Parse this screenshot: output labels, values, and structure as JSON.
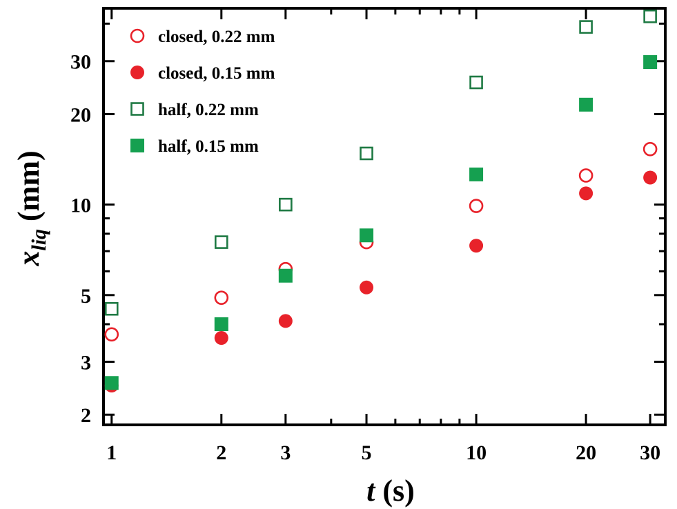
{
  "chart_data": {
    "type": "scatter",
    "title": "",
    "xscale": "log",
    "yscale": "log",
    "xlim": [
      0.95,
      33
    ],
    "ylim": [
      1.85,
      45
    ],
    "x_ticks": [
      1,
      2,
      3,
      5,
      10,
      20,
      30
    ],
    "x_tick_labels": [
      "1",
      "2",
      "3",
      "5",
      "10",
      "20",
      "30"
    ],
    "y_ticks": [
      2,
      3,
      5,
      10,
      20,
      30
    ],
    "y_tick_labels": [
      "2",
      "3",
      "5",
      "10",
      "20",
      "30"
    ],
    "xlabel": {
      "var": "t",
      "unit": " (s)"
    },
    "ylabel": {
      "var": "x",
      "sub": "liq",
      "unit": " (mm)"
    },
    "grid": false,
    "legend_position": "top-left",
    "series": [
      {
        "name": "closed, 0.22 mm",
        "marker": "circle",
        "filled": false,
        "color": "#e8222a",
        "x": [
          1,
          2,
          3,
          5,
          10,
          20,
          30
        ],
        "y": [
          3.7,
          4.9,
          6.1,
          7.5,
          9.9,
          12.5,
          15.3
        ]
      },
      {
        "name": "closed, 0.15 mm",
        "marker": "circle",
        "filled": true,
        "color": "#e8222a",
        "x": [
          1,
          2,
          3,
          5,
          10,
          20,
          30
        ],
        "y": [
          2.5,
          3.6,
          4.1,
          5.3,
          7.3,
          10.9,
          12.3
        ]
      },
      {
        "name": "half, 0.22 mm",
        "marker": "square",
        "filled": false,
        "color": "#1f7a44",
        "x": [
          1,
          2,
          3,
          5,
          10,
          20,
          30
        ],
        "y": [
          4.5,
          7.5,
          10.0,
          14.8,
          25.5,
          39.0,
          42.3
        ]
      },
      {
        "name": "half, 0.15 mm",
        "marker": "square",
        "filled": true,
        "color": "#15a050",
        "x": [
          1,
          2,
          3,
          5,
          10,
          20,
          30
        ],
        "y": [
          2.55,
          4.0,
          5.8,
          7.9,
          12.6,
          21.5,
          29.8
        ]
      }
    ]
  }
}
